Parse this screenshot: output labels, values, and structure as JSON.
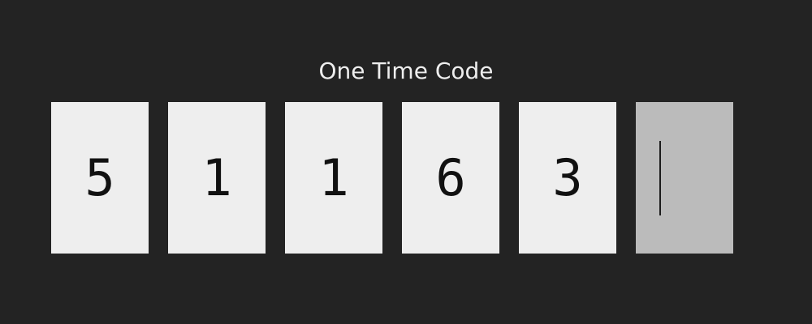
{
  "title": "One Time Code",
  "otp": {
    "digits": [
      "5",
      "1",
      "1",
      "6",
      "3",
      ""
    ],
    "active_index": 5
  }
}
